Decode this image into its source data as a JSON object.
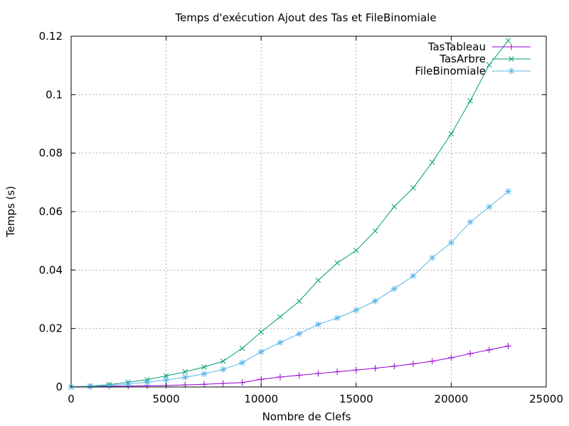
{
  "chart_data": {
    "type": "line",
    "title": "Temps d'exécution Ajout des Tas et FileBinomiale",
    "xlabel": "Nombre de Clefs",
    "ylabel": "Temps (s)",
    "xlim": [
      0,
      25000
    ],
    "ylim": [
      0,
      0.12
    ],
    "xticks": [
      0,
      5000,
      10000,
      15000,
      20000,
      25000
    ],
    "xtick_labels": [
      "0",
      "5000",
      "10000",
      "15000",
      "20000",
      "25000"
    ],
    "yticks": [
      0,
      0.02,
      0.04,
      0.06,
      0.08,
      0.1,
      0.12
    ],
    "ytick_labels": [
      "0",
      "0.02",
      "0.04",
      "0.06",
      "0.08",
      "0.1",
      "0.12"
    ],
    "grid": true,
    "legend_position": "top-right",
    "x": [
      0,
      1000,
      2000,
      3000,
      4000,
      5000,
      6000,
      7000,
      8000,
      9000,
      10000,
      11000,
      12000,
      13000,
      14000,
      15000,
      16000,
      17000,
      18000,
      19000,
      20000,
      21000,
      22000,
      23000
    ],
    "series": [
      {
        "name": "TasTableau",
        "color": "#9400d3",
        "marker": "plus",
        "values": [
          0.0,
          0.0001,
          0.0002,
          0.0003,
          0.0004,
          0.0005,
          0.0007,
          0.0009,
          0.0012,
          0.0015,
          0.0026,
          0.0034,
          0.004,
          0.0046,
          0.0052,
          0.0058,
          0.0064,
          0.0071,
          0.0079,
          0.0088,
          0.01,
          0.0114,
          0.0127,
          0.014
        ]
      },
      {
        "name": "TasArbre",
        "color": "#009e73",
        "marker": "cross",
        "values": [
          0.0,
          0.0003,
          0.0008,
          0.0016,
          0.0025,
          0.0038,
          0.0052,
          0.0068,
          0.0088,
          0.0132,
          0.0188,
          0.024,
          0.0293,
          0.0365,
          0.0424,
          0.0467,
          0.0534,
          0.0617,
          0.0681,
          0.0769,
          0.0866,
          0.0979,
          0.1102,
          0.1185
        ]
      },
      {
        "name": "FileBinomiale",
        "color": "#56b4e9",
        "marker": "star",
        "values": [
          0.0,
          0.0002,
          0.0005,
          0.001,
          0.0016,
          0.0024,
          0.0033,
          0.0045,
          0.006,
          0.0083,
          0.012,
          0.0152,
          0.0182,
          0.0214,
          0.0236,
          0.0263,
          0.0294,
          0.0336,
          0.038,
          0.0442,
          0.0494,
          0.0564,
          0.0616,
          0.0669
        ]
      }
    ]
  }
}
